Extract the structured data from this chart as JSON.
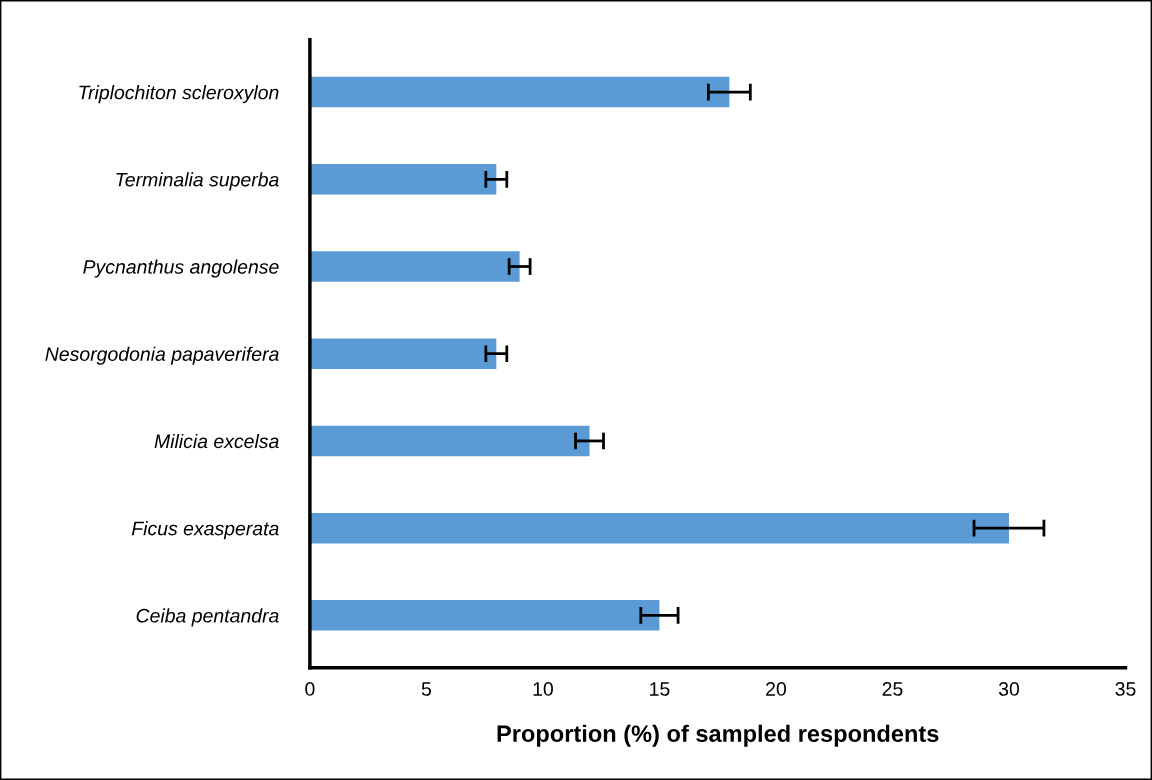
{
  "chart_data": {
    "type": "bar",
    "orientation": "horizontal",
    "xlabel": "Proportion (%) of sampled respondents",
    "categories": [
      "Triplochiton scleroxylon",
      "Terminalia superba",
      "Pycnanthus angolense",
      "Nesorgodonia papaverifera",
      "Milicia excelsa",
      "Ficus exasperata",
      "Ceiba pentandra"
    ],
    "values": [
      18,
      8,
      9,
      8,
      12,
      30,
      15
    ],
    "errors": [
      0.9,
      0.45,
      0.45,
      0.45,
      0.6,
      1.5,
      0.8
    ],
    "color": "#5b9bd5",
    "xlim": [
      0,
      35
    ],
    "xticks": [
      0,
      5,
      10,
      15,
      20,
      25,
      30,
      35
    ],
    "grid": false,
    "legend": false
  }
}
